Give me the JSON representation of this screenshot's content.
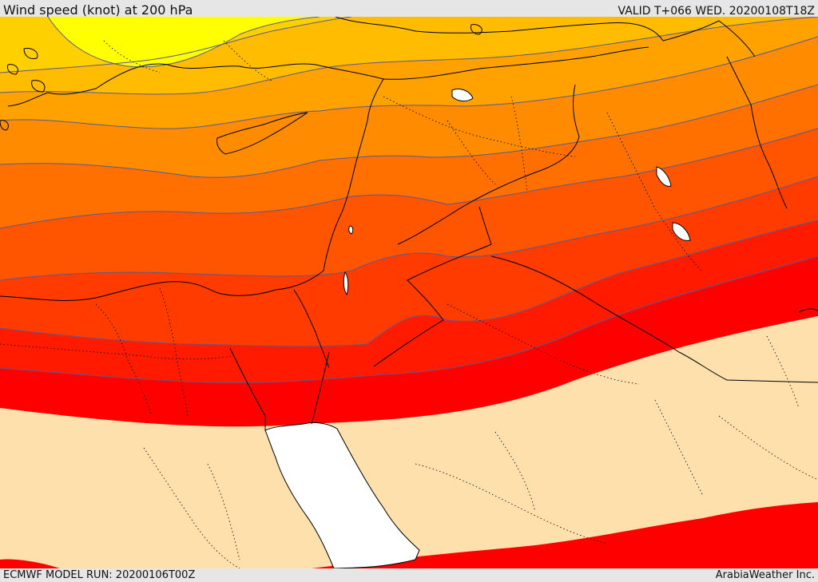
{
  "header": {
    "title": "Wind speed (knot) at 200 hPa",
    "valid": "VALID T+066 WED. 20200108T18Z"
  },
  "footer": {
    "model_run": "ECMWF MODEL RUN: 20200106T00Z",
    "credit": "ArabiaWeather Inc."
  },
  "map": {
    "variable": "wind speed",
    "unit": "knot",
    "pressure_level_hpa": 200,
    "band_colors": [
      "#ffff00",
      "#ffd000",
      "#ffbc00",
      "#ffa200",
      "#ff8c00",
      "#ff7000",
      "#ff5500",
      "#ff3b00",
      "#ff1a00",
      "#ff0000"
    ],
    "below_threshold_color": "#fde0ac",
    "sea_mask_color": "#ffffff",
    "contour_color": "#5a5a8c",
    "border_color": "#000000"
  }
}
